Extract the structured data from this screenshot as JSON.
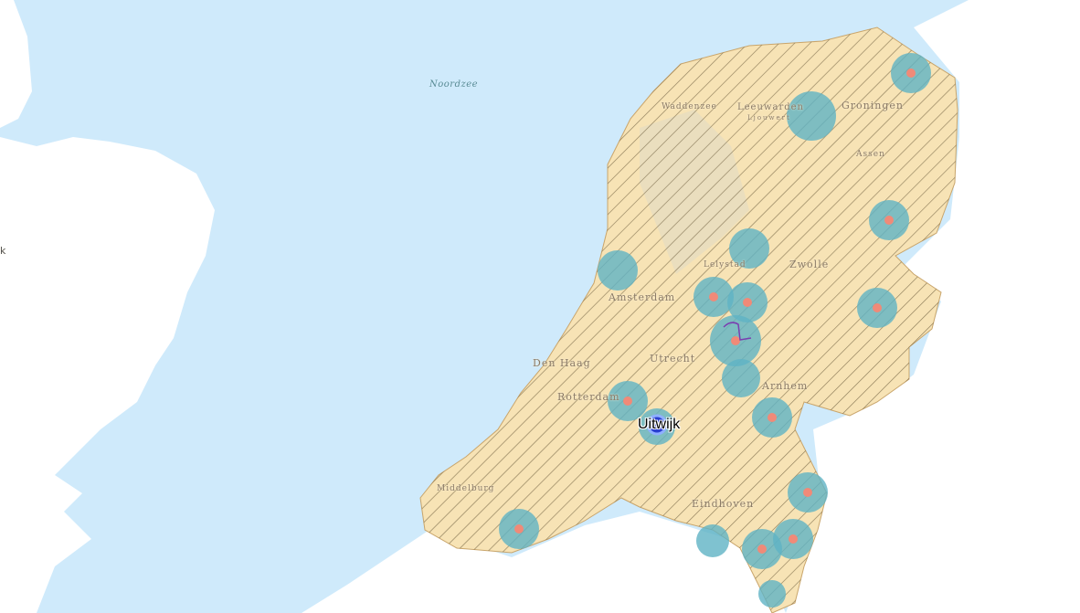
{
  "map": {
    "labels": {
      "sea": "Noordzee",
      "wadden": "Waddenzee",
      "leeuwarden": "Leeuwarden",
      "leeuwarden_sub": "Ljouwert",
      "groningen": "Groningen",
      "assen": "Assen",
      "lelystad": "Lelystad",
      "zwolle": "Zwolle",
      "amsterdam": "Amsterdam",
      "den_haag": "Den Haag",
      "utrecht": "Utrecht",
      "rotterdam": "Rotterdam",
      "arnhem": "Arnhem",
      "middelburg": "Middelburg",
      "eindhoven": "Eindhoven",
      "edge": "k"
    },
    "marker": {
      "label": "Uitwijk",
      "icon": "location-marker-icon"
    },
    "colors": {
      "sea": "#cfeafb",
      "land": "#ffffff",
      "area": "#f7e3b5",
      "hatch": "#6b5a3a",
      "buffer": "#5fb3c4",
      "point": "#f08a78",
      "marker": "#2a3fd0"
    }
  }
}
